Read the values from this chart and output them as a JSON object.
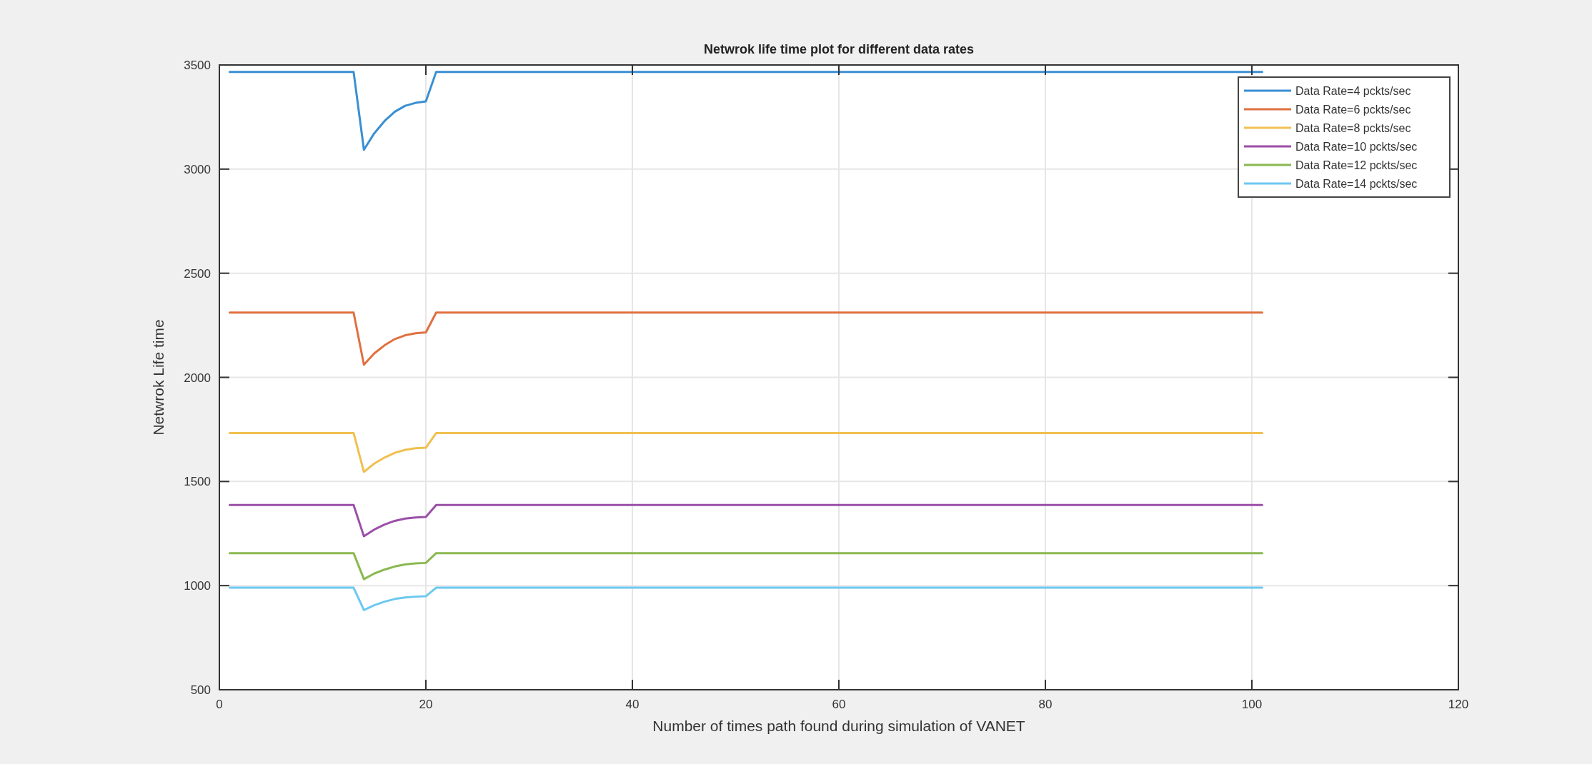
{
  "chart_data": {
    "type": "line",
    "title": "Netwrok life time plot for different data rates",
    "xlabel": "Number of times path found during simulation of VANET",
    "ylabel": "Netwrok Life time",
    "xlim": [
      0,
      120
    ],
    "xticks": [
      0,
      20,
      40,
      60,
      80,
      100,
      120
    ],
    "ylim": [
      500,
      3500
    ],
    "yticks": [
      500,
      1000,
      1500,
      2000,
      2500,
      3000,
      3500
    ],
    "grid": true,
    "legend": "top right",
    "line_style": "solid",
    "series": [
      {
        "name": "Data Rate=4 pckts/sec",
        "color": "#3a8fd3",
        "x": [
          1,
          13,
          14,
          15,
          16,
          17,
          18,
          19,
          20,
          21,
          101
        ],
        "values": [
          3467,
          3467,
          3093,
          3172,
          3231,
          3276,
          3304,
          3318,
          3325,
          3467,
          3467
        ]
      },
      {
        "name": "Data Rate=6 pckts/sec",
        "color": "#e07040",
        "x": [
          1,
          13,
          14,
          15,
          16,
          17,
          18,
          19,
          20,
          21,
          101
        ],
        "values": [
          2311,
          2311,
          2061,
          2115,
          2154,
          2184,
          2202,
          2212,
          2216,
          2311,
          2311
        ]
      },
      {
        "name": "Data Rate=8 pckts/sec",
        "color": "#f0c050",
        "x": [
          1,
          13,
          14,
          15,
          16,
          17,
          18,
          19,
          20,
          21,
          101
        ],
        "values": [
          1733,
          1733,
          1546,
          1586,
          1615,
          1638,
          1652,
          1660,
          1662,
          1733,
          1733
        ]
      },
      {
        "name": "Data Rate=10 pckts/sec",
        "color": "#9b4fa8",
        "x": [
          1,
          13,
          14,
          15,
          16,
          17,
          18,
          19,
          20,
          21,
          101
        ],
        "values": [
          1387,
          1387,
          1237,
          1269,
          1293,
          1311,
          1322,
          1327,
          1330,
          1387,
          1387
        ]
      },
      {
        "name": "Data Rate=12 pckts/sec",
        "color": "#8ab850",
        "x": [
          1,
          13,
          14,
          15,
          16,
          17,
          18,
          19,
          20,
          21,
          101
        ],
        "values": [
          1156,
          1156,
          1031,
          1058,
          1077,
          1092,
          1102,
          1107,
          1109,
          1156,
          1156
        ]
      },
      {
        "name": "Data Rate=14 pckts/sec",
        "color": "#6cc8f0",
        "x": [
          1,
          13,
          14,
          15,
          16,
          17,
          18,
          19,
          20,
          21,
          101
        ],
        "values": [
          990,
          990,
          883,
          906,
          923,
          936,
          943,
          947,
          949,
          990,
          990
        ]
      }
    ]
  }
}
